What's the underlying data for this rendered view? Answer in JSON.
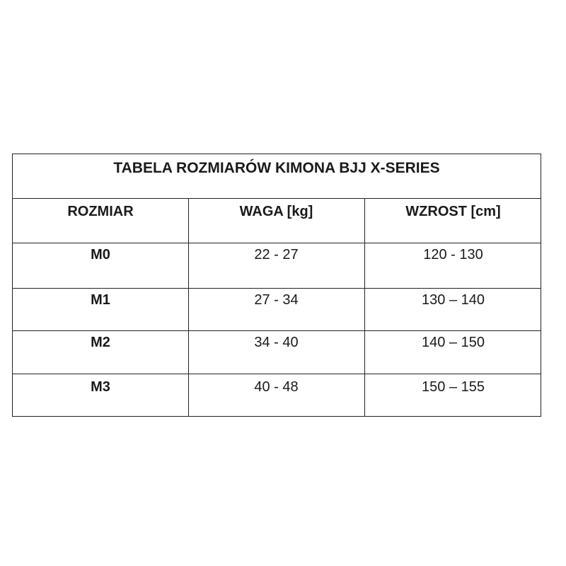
{
  "title": "TABELA ROZMIARÓW KIMONA BJJ X-SERIES",
  "headers": [
    "ROZMIAR",
    "WAGA [kg]",
    "WZROST [cm]"
  ],
  "rows": [
    [
      "M0",
      "22 - 27",
      "120 - 130"
    ],
    [
      "M1",
      "27 - 34",
      "130 – 140"
    ],
    [
      "M2",
      "34 - 40",
      "140 – 150"
    ],
    [
      "M3",
      "40 - 48",
      "150 – 155"
    ]
  ]
}
